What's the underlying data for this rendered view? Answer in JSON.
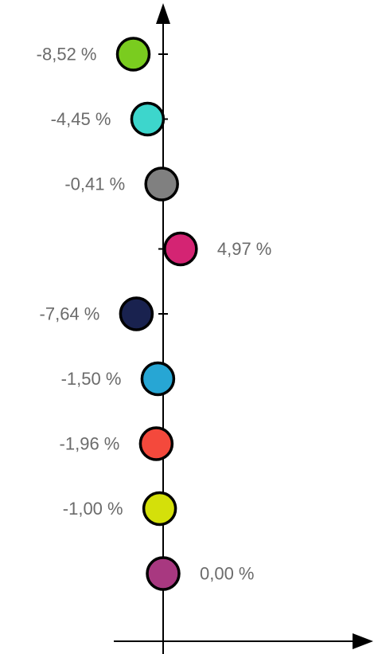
{
  "chart_data": {
    "type": "scatter",
    "orientation": "vertical-category",
    "title": "",
    "xlabel": "",
    "ylabel": "",
    "grid": false,
    "legend": "none",
    "xlim": [
      -10,
      20
    ],
    "points": [
      {
        "value": -8.52,
        "label": "-8,52 %",
        "color": "#7acc1f"
      },
      {
        "value": -4.45,
        "label": "-4,45 %",
        "color": "#3dd6cc"
      },
      {
        "value": -0.41,
        "label": "-0,41 %",
        "color": "#808080"
      },
      {
        "value": 4.97,
        "label": "4,97 %",
        "color": "#d42473"
      },
      {
        "value": -7.64,
        "label": "-7,64 %",
        "color": "#19224f"
      },
      {
        "value": -1.5,
        "label": "-1,50 %",
        "color": "#27a6d4"
      },
      {
        "value": -1.96,
        "label": "-1,96 %",
        "color": "#f4493c"
      },
      {
        "value": -1.0,
        "label": "-1,00 %",
        "color": "#d4e00a"
      },
      {
        "value": 0.0,
        "label": "0,00 %",
        "color": "#a83880"
      }
    ]
  }
}
